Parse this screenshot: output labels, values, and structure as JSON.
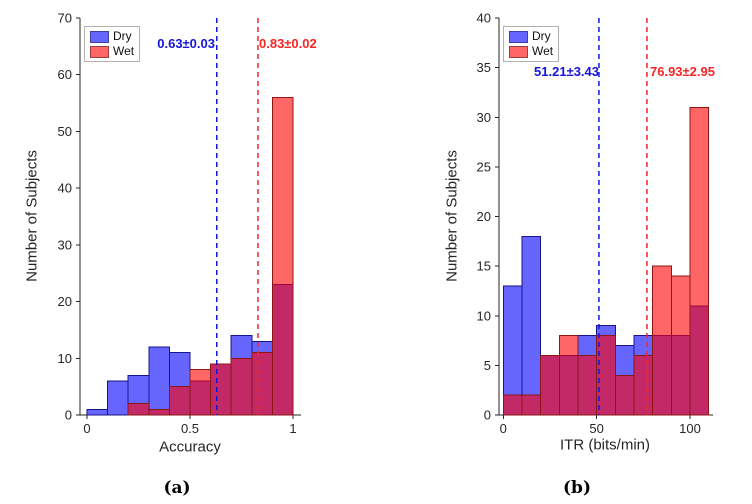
{
  "chart_data": [
    {
      "panel": "a",
      "type": "bar",
      "subtype": "overlaid-histogram",
      "caption": "(a)",
      "xlabel": "Accuracy",
      "ylabel": "Number of Subjects",
      "xlim": [
        -0.034,
        1.039
      ],
      "ylim": [
        0,
        70
      ],
      "grid": false,
      "axis_color": "#262626",
      "legend_position": "top-left",
      "xticks": [
        {
          "v": 0,
          "label": "0"
        },
        {
          "v": 0.5,
          "label": "0.5"
        },
        {
          "v": 1,
          "label": "1"
        }
      ],
      "yticks": [
        {
          "v": 0,
          "label": "0"
        },
        {
          "v": 10,
          "label": "10"
        },
        {
          "v": 20,
          "label": "20"
        },
        {
          "v": 30,
          "label": "30"
        },
        {
          "v": 40,
          "label": "40"
        },
        {
          "v": 50,
          "label": "50"
        },
        {
          "v": 60,
          "label": "60"
        },
        {
          "v": 70,
          "label": "70"
        }
      ],
      "bin_edges": [
        0,
        0.1,
        0.2,
        0.3,
        0.4,
        0.5,
        0.6,
        0.7,
        0.8,
        0.9,
        1.0
      ],
      "series": [
        {
          "name": "Dry",
          "color": "#0000FF",
          "edge_color": "#16168C",
          "display_color": "#6666FF",
          "face_alpha": 0.6,
          "values": [
            1,
            6,
            7,
            12,
            11,
            6,
            9,
            14,
            13,
            23
          ]
        },
        {
          "name": "Wet",
          "color": "#FF0000",
          "edge_color": "#8C1616",
          "display_color": "#FF6666",
          "face_alpha": 0.6,
          "values": [
            0,
            0,
            2,
            1,
            5,
            8,
            9,
            10,
            11,
            56
          ]
        }
      ],
      "vlines": [
        {
          "value": 0.63,
          "label": "0.63±0.03",
          "color": "#1414DC",
          "label_side": "left"
        },
        {
          "value": 0.83,
          "label": "0.83±0.02",
          "color": "#F52525",
          "label_side": "right"
        }
      ]
    },
    {
      "panel": "b",
      "type": "bar",
      "subtype": "overlaid-histogram",
      "caption": "(b)",
      "xlabel": "ITR (bits/min)",
      "ylabel": "Number of Subjects",
      "xlim": [
        -2.3,
        112.3
      ],
      "ylim": [
        0,
        40
      ],
      "grid": false,
      "axis_color": "#262626",
      "legend_position": "top-left",
      "xticks": [
        {
          "v": 0,
          "label": "0"
        },
        {
          "v": 50,
          "label": "50"
        },
        {
          "v": 100,
          "label": "100"
        }
      ],
      "yticks": [
        {
          "v": 0,
          "label": "0"
        },
        {
          "v": 5,
          "label": "5"
        },
        {
          "v": 10,
          "label": "10"
        },
        {
          "v": 15,
          "label": "15"
        },
        {
          "v": 20,
          "label": "20"
        },
        {
          "v": 25,
          "label": "25"
        },
        {
          "v": 30,
          "label": "30"
        },
        {
          "v": 35,
          "label": "35"
        },
        {
          "v": 40,
          "label": "40"
        }
      ],
      "bin_edges": [
        0,
        10,
        20,
        30,
        40,
        50,
        60,
        70,
        80,
        90,
        100,
        110
      ],
      "series": [
        {
          "name": "Dry",
          "color": "#0000FF",
          "edge_color": "#16168C",
          "display_color": "#6666FF",
          "face_alpha": 0.6,
          "values": [
            13,
            18,
            6,
            6,
            8,
            9,
            7,
            8,
            8,
            8,
            11
          ]
        },
        {
          "name": "Wet",
          "color": "#FF0000",
          "edge_color": "#8C1616",
          "display_color": "#FF6666",
          "face_alpha": 0.6,
          "values": [
            2,
            2,
            6,
            8,
            6,
            8,
            4,
            6,
            15,
            14,
            31
          ]
        }
      ],
      "vlines": [
        {
          "value": 51.21,
          "label": "51.21±3.43",
          "color": "#1414DC",
          "label_side": "left"
        },
        {
          "value": 76.93,
          "label": "76.93±2.95",
          "color": "#F52525",
          "label_side": "right"
        }
      ]
    }
  ]
}
